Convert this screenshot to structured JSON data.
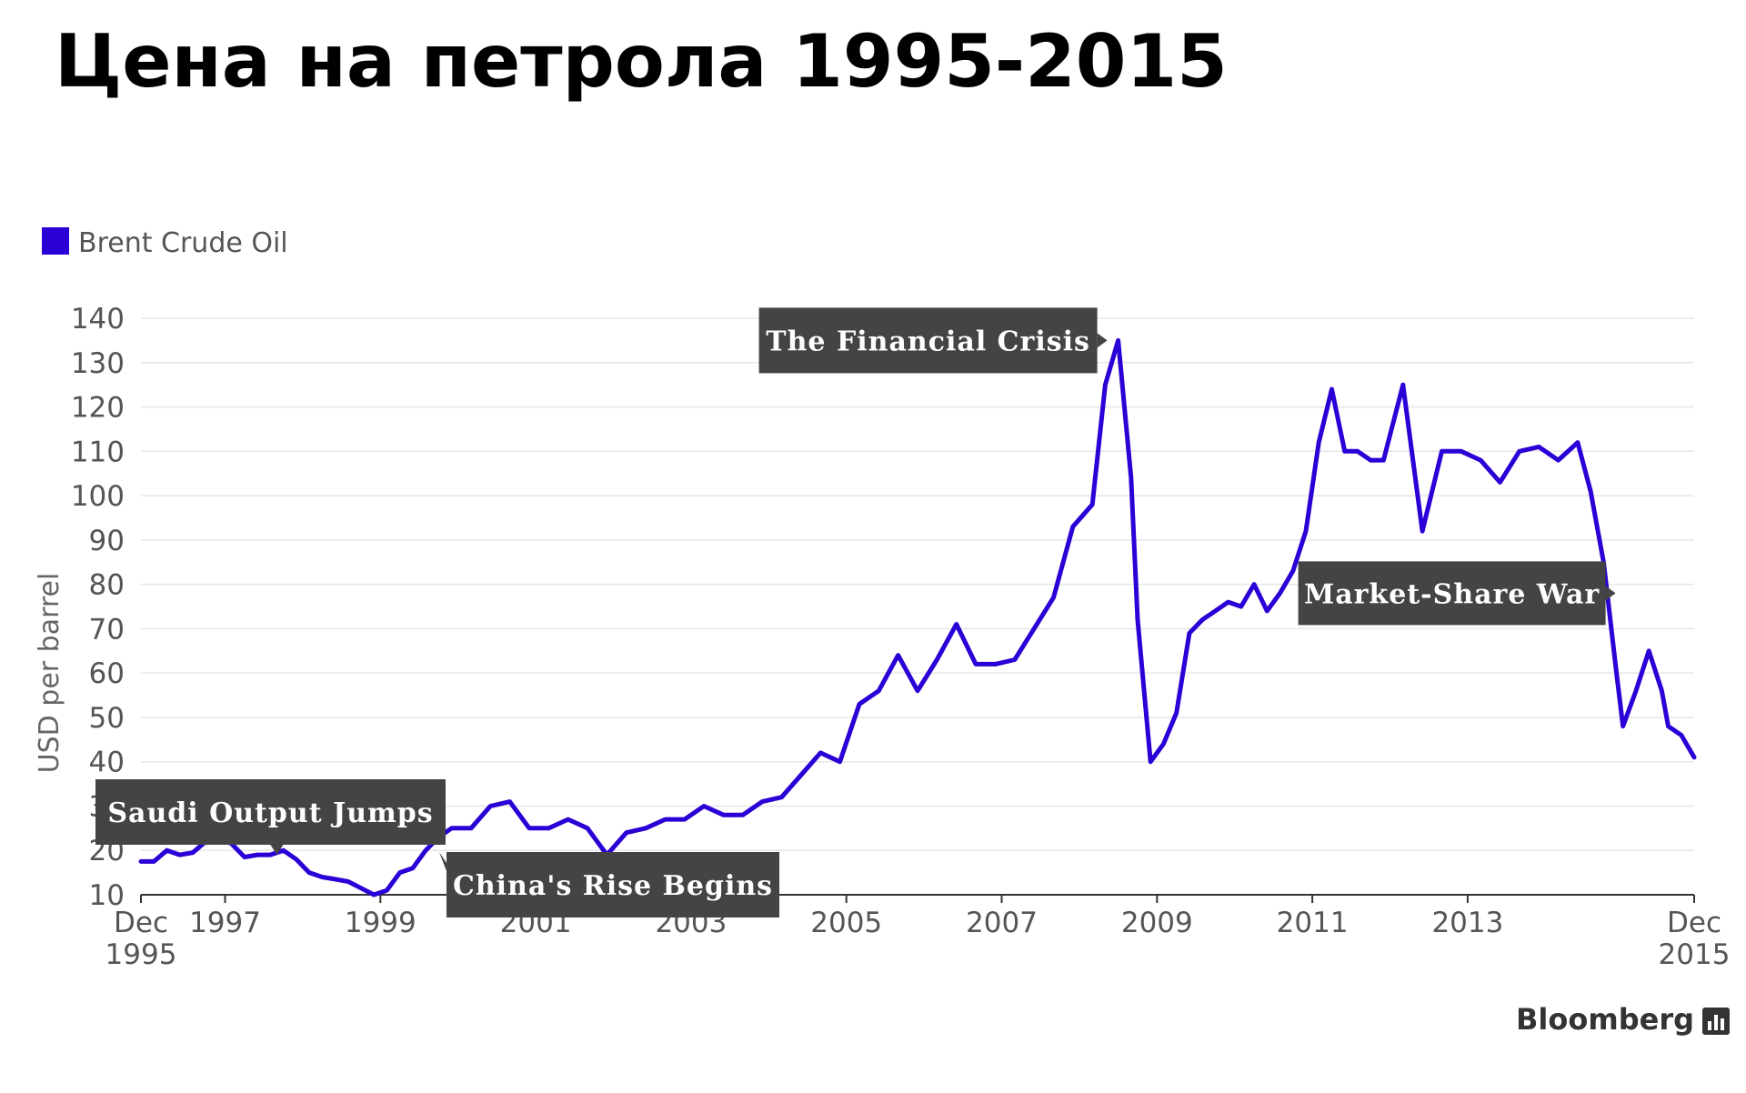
{
  "title": "Цена на петрола 1995-2015",
  "source": "Bloomberg",
  "chart_data": {
    "type": "line",
    "title": "Цена на петрола 1995-2015",
    "ylabel": "USD per barrel",
    "xlabel": "",
    "ylim": [
      10,
      140
    ],
    "y_ticks": [
      10,
      20,
      30,
      40,
      50,
      60,
      70,
      80,
      90,
      100,
      110,
      120,
      130,
      140
    ],
    "x_range": [
      "1995-12",
      "2015-12"
    ],
    "x_ticks": [
      {
        "date": "1995-12",
        "line1": "Dec",
        "line2": "1995"
      },
      {
        "date": "1997-01",
        "line1": "1997",
        "line2": ""
      },
      {
        "date": "1999-01",
        "line1": "1999",
        "line2": ""
      },
      {
        "date": "2001-01",
        "line1": "2001",
        "line2": ""
      },
      {
        "date": "2003-01",
        "line1": "2003",
        "line2": ""
      },
      {
        "date": "2005-01",
        "line1": "2005",
        "line2": ""
      },
      {
        "date": "2007-01",
        "line1": "2007",
        "line2": ""
      },
      {
        "date": "2009-01",
        "line1": "2009",
        "line2": ""
      },
      {
        "date": "2011-01",
        "line1": "2011",
        "line2": ""
      },
      {
        "date": "2013-01",
        "line1": "2013",
        "line2": ""
      },
      {
        "date": "2015-12",
        "line1": "Dec",
        "line2": "2015"
      }
    ],
    "grid": true,
    "legend": "top-left",
    "colors": {
      "series": "#2a00d6",
      "annotation_bg": "#444444",
      "grid": "#e6e6e6"
    },
    "series": [
      {
        "name": "Brent Crude Oil",
        "x": [
          "1995-12",
          "1996-02",
          "1996-04",
          "1996-06",
          "1996-08",
          "1996-10",
          "1996-12",
          "1997-02",
          "1997-04",
          "1997-06",
          "1997-08",
          "1997-10",
          "1997-12",
          "1998-02",
          "1998-04",
          "1998-06",
          "1998-08",
          "1998-10",
          "1998-12",
          "1999-02",
          "1999-04",
          "1999-06",
          "1999-08",
          "1999-10",
          "1999-12",
          "2000-03",
          "2000-06",
          "2000-09",
          "2000-12",
          "2001-03",
          "2001-06",
          "2001-09",
          "2001-12",
          "2002-03",
          "2002-06",
          "2002-09",
          "2002-12",
          "2003-03",
          "2003-06",
          "2003-09",
          "2003-12",
          "2004-03",
          "2004-06",
          "2004-09",
          "2004-12",
          "2005-03",
          "2005-06",
          "2005-09",
          "2005-12",
          "2006-03",
          "2006-06",
          "2006-09",
          "2006-12",
          "2007-03",
          "2007-06",
          "2007-09",
          "2007-12",
          "2008-03",
          "2008-05",
          "2008-07",
          "2008-09",
          "2008-10",
          "2008-12",
          "2009-02",
          "2009-04",
          "2009-06",
          "2009-08",
          "2009-10",
          "2009-12",
          "2010-02",
          "2010-04",
          "2010-06",
          "2010-08",
          "2010-10",
          "2010-12",
          "2011-02",
          "2011-04",
          "2011-06",
          "2011-08",
          "2011-10",
          "2011-12",
          "2012-03",
          "2012-06",
          "2012-09",
          "2012-12",
          "2013-03",
          "2013-06",
          "2013-09",
          "2013-12",
          "2014-03",
          "2014-06",
          "2014-08",
          "2014-10",
          "2014-12",
          "2015-01",
          "2015-03",
          "2015-05",
          "2015-07",
          "2015-08",
          "2015-10",
          "2015-12"
        ],
        "values": [
          17.5,
          17.5,
          20,
          19,
          19.5,
          22,
          23,
          21.5,
          18.5,
          19,
          19,
          20,
          18,
          15,
          14,
          13.5,
          13,
          11.5,
          10,
          11,
          15,
          16,
          20,
          23,
          25,
          25,
          30,
          31,
          25,
          25,
          27,
          25,
          19,
          24,
          25,
          27,
          27,
          30,
          28,
          28,
          31,
          32,
          37,
          42,
          40,
          53,
          56,
          64,
          56,
          63,
          71,
          62,
          62,
          63,
          70,
          77,
          93,
          98,
          125,
          135,
          104,
          72,
          40,
          44,
          51,
          69,
          72,
          74,
          76,
          75,
          80,
          74,
          78,
          83,
          92,
          112,
          124,
          110,
          110,
          108,
          108,
          125,
          92,
          110,
          110,
          108,
          103,
          110,
          111,
          108,
          112,
          101,
          85,
          60,
          48,
          56,
          65,
          56,
          48,
          46,
          41
        ]
      }
    ],
    "annotations": [
      {
        "text": "The Financial Crisis",
        "date": "2008-07",
        "value": 135,
        "pointer": "right"
      },
      {
        "text": "Market-Share War",
        "date": "2014-12",
        "value": 78,
        "pointer": "right"
      },
      {
        "text": "Saudi Output Jumps",
        "date": "1997-09",
        "value": 21,
        "pointer": "down"
      },
      {
        "text": "China's Rise Begins",
        "date": "1999-12",
        "value": 23,
        "pointer": "up-left"
      }
    ]
  }
}
